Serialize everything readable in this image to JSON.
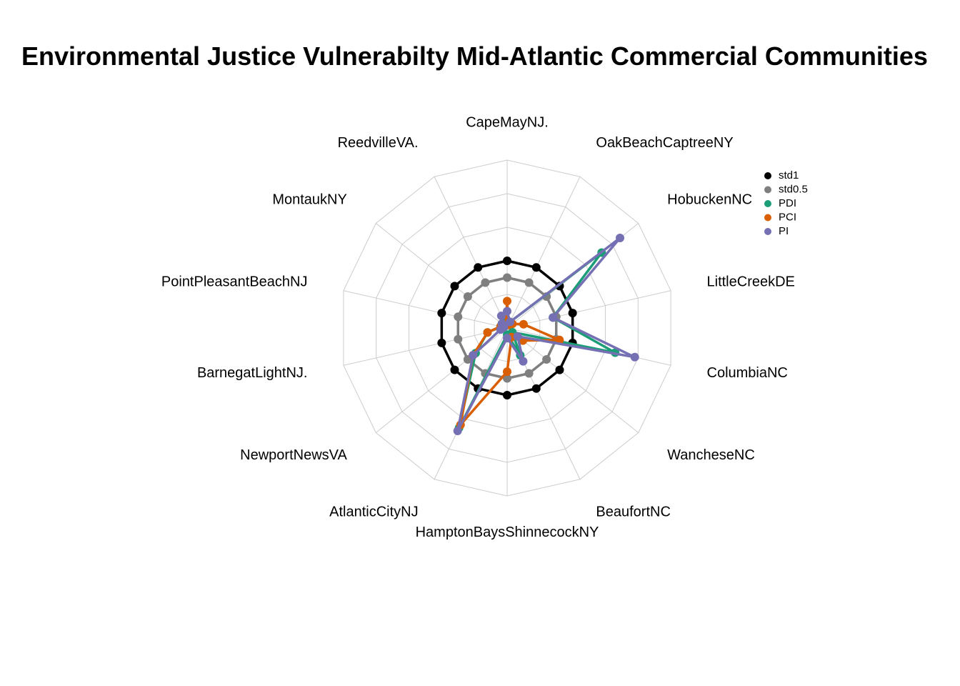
{
  "chart_data": {
    "type": "radar",
    "title": "Environmental Justice Vulnerabilty Mid-Atlantic Commercial  Communities",
    "categories": [
      "CapeMayNJ.",
      "OakBeachCaptreeNY",
      "HobuckenNC",
      "LittleCreekDE",
      "ColumbiaNC",
      "WancheseNC",
      "BeaufortNC",
      "HamptonBaysShinnecockNY",
      "AtlanticCityNJ",
      "NewportNewsVA",
      "BarnegatLightNJ.",
      "PointPleasantBeachNJ",
      "MontaukNY",
      "ReedvilleVA."
    ],
    "rlim": [
      0,
      5
    ],
    "grid_levels": 5,
    "legend_position": "right",
    "series": [
      {
        "name": "std1",
        "color": "#000000",
        "values": [
          2,
          2,
          2,
          2,
          2,
          2,
          2,
          2,
          2,
          2,
          2,
          2,
          2,
          2
        ]
      },
      {
        "name": "std0.5",
        "color": "#7f7f7f",
        "values": [
          1.5,
          1.5,
          1.5,
          1.5,
          1.5,
          1.5,
          1.5,
          1.5,
          1.5,
          1.5,
          1.5,
          1.5,
          1.5,
          1.5
        ]
      },
      {
        "name": "PDI",
        "color": "#1b9e77",
        "values": [
          0.2,
          0.2,
          3.6,
          1.4,
          3.3,
          0.2,
          0.9,
          0.2,
          3.3,
          1.2,
          0.6,
          0.2,
          0.2,
          0.2
        ]
      },
      {
        "name": "PCI",
        "color": "#d95f02",
        "values": [
          0.8,
          0.1,
          0.2,
          0.5,
          1.6,
          0.6,
          0.3,
          1.3,
          3.2,
          1.3,
          0.6,
          0.2,
          0.1,
          0.1
        ]
      },
      {
        "name": "PI",
        "color": "#7570b3",
        "values": [
          0.5,
          0.2,
          4.3,
          1.4,
          3.9,
          0.4,
          1.1,
          0.3,
          3.4,
          1.3,
          0.2,
          0.1,
          0.2,
          0.4
        ]
      }
    ]
  }
}
